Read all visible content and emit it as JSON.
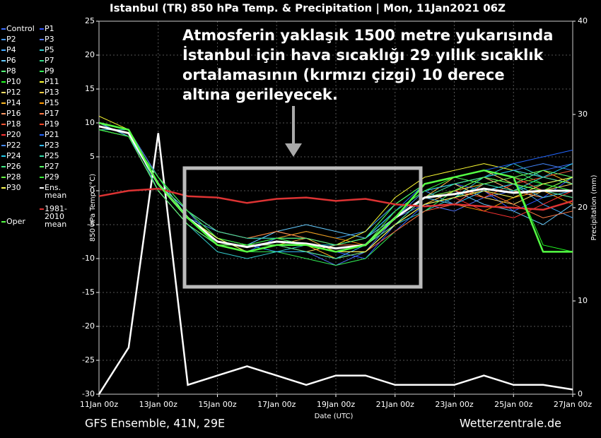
{
  "chart_data": {
    "type": "line",
    "title": "Istanbul  (TR)  850 hPa Temp. & Precipitation | Mon, 11Jan2021 06Z",
    "annotation": [
      "Atmosferin yaklaşık 1500 metre yukarısında",
      "İstanbul için hava sıcaklığı 29 yıllık sıcaklık",
      "ortalamasının (kırmızı çizgi) 10 derece",
      "altına gerileyecek."
    ],
    "footer_left": "GFS Ensemble, 41N, 29E",
    "footer_right": "Wetterzentrale.de",
    "ylabel": "850 hPa Temp. (°C)",
    "y2label": "Precipitation (mm)",
    "xlabel": "Date (UTC)",
    "grid": true,
    "x": [
      0,
      1,
      2,
      3,
      4,
      5,
      6,
      7,
      8,
      9,
      10,
      11,
      12,
      13,
      14,
      15,
      16
    ],
    "xlim": [
      0,
      16
    ],
    "xticks": [
      {
        "value": 0,
        "label": "11Jan 00z"
      },
      {
        "value": 2,
        "label": "13Jan 00z"
      },
      {
        "value": 4,
        "label": "15Jan 00z"
      },
      {
        "value": 6,
        "label": "17Jan 00z"
      },
      {
        "value": 8,
        "label": "19Jan 00z"
      },
      {
        "value": 10,
        "label": "21Jan 00z"
      },
      {
        "value": 12,
        "label": "23Jan 00z"
      },
      {
        "value": 14,
        "label": "25Jan 00z"
      },
      {
        "value": 16,
        "label": "27Jan 00z"
      }
    ],
    "ylim": [
      -30,
      25
    ],
    "yticks": [
      25,
      20,
      15,
      10,
      5,
      0,
      -5,
      -10,
      -15,
      -20,
      -25,
      -30
    ],
    "y2lim": [
      0,
      40
    ],
    "y2ticks": [
      0,
      10,
      20,
      30,
      40
    ],
    "series": [
      {
        "name": "Control",
        "color": "#3b6cff",
        "values": [
          10,
          9,
          2,
          -3,
          -7,
          -8,
          -8,
          -9,
          -10,
          -9,
          -6,
          -2,
          0,
          2,
          1,
          3,
          4
        ]
      },
      {
        "name": "P1",
        "color": "#3355ff",
        "values": [
          9,
          8,
          0,
          -5,
          -8,
          -9,
          -7,
          -8,
          -9,
          -10,
          -5,
          -1,
          1,
          0,
          -3,
          -1,
          2
        ]
      },
      {
        "name": "P2",
        "color": "#4499ff",
        "values": [
          10,
          9,
          1,
          -4,
          -7,
          -8,
          -6,
          -7,
          -8,
          -7,
          -3,
          0,
          -2,
          1,
          2,
          0,
          -1
        ]
      },
      {
        "name": "P3",
        "color": "#5577ff",
        "values": [
          9,
          8,
          1,
          -3,
          -8,
          -9,
          -8,
          -9,
          -11,
          -9,
          -4,
          -2,
          -3,
          -1,
          0,
          2,
          1
        ]
      },
      {
        "name": "P4",
        "color": "#44aaff",
        "values": [
          10,
          8,
          2,
          -4,
          -6,
          -7,
          -7,
          -6,
          -7,
          -6,
          -2,
          1,
          2,
          3,
          1,
          -2,
          -4
        ]
      },
      {
        "name": "P5",
        "color": "#33cccc",
        "values": [
          9,
          9,
          0,
          -5,
          -9,
          -10,
          -9,
          -8,
          -9,
          -8,
          -5,
          -3,
          -1,
          2,
          4,
          2,
          3
        ]
      },
      {
        "name": "P6",
        "color": "#66ccff",
        "values": [
          10,
          8,
          1,
          -3,
          -7,
          -8,
          -6,
          -5,
          -6,
          -7,
          -4,
          -1,
          0,
          -2,
          -3,
          -5,
          -2
        ]
      },
      {
        "name": "P7",
        "color": "#33dd88",
        "values": [
          9,
          8,
          1,
          -4,
          -8,
          -8,
          -7,
          -8,
          -9,
          -8,
          -3,
          0,
          1,
          2,
          0,
          1,
          2
        ]
      },
      {
        "name": "P8",
        "color": "#55ff77",
        "values": [
          10,
          9,
          2,
          -4,
          -7,
          -9,
          -8,
          -8,
          -9,
          -9,
          -5,
          -2,
          -1,
          0,
          1,
          3,
          2
        ]
      },
      {
        "name": "P9",
        "color": "#33ee55",
        "values": [
          9,
          8,
          0,
          -5,
          -8,
          -9,
          -9,
          -10,
          -11,
          -10,
          -6,
          -3,
          0,
          2,
          3,
          1,
          0
        ]
      },
      {
        "name": "P10",
        "color": "#22ff22",
        "values": [
          10,
          9,
          1,
          -4,
          -8,
          -8,
          -7,
          -7,
          -8,
          -7,
          -2,
          1,
          2,
          3,
          2,
          -8,
          -9
        ]
      },
      {
        "name": "P11",
        "color": "#ffff33",
        "values": [
          11,
          9,
          2,
          -3,
          -6,
          -7,
          -6,
          -7,
          -8,
          -6,
          -1,
          2,
          3,
          4,
          3,
          2,
          1
        ]
      },
      {
        "name": "P12",
        "color": "#ffdd66",
        "values": [
          10,
          8,
          1,
          -4,
          -7,
          -8,
          -8,
          -9,
          -8,
          -7,
          -3,
          0,
          1,
          -1,
          -2,
          0,
          1
        ]
      },
      {
        "name": "P13",
        "color": "#ffcc44",
        "values": [
          9,
          8,
          0,
          -5,
          -8,
          -9,
          -8,
          -7,
          -9,
          -8,
          -4,
          -1,
          2,
          3,
          1,
          0,
          2
        ]
      },
      {
        "name": "P14",
        "color": "#ffbb22",
        "values": [
          10,
          9,
          2,
          -3,
          -7,
          -8,
          -7,
          -8,
          -10,
          -9,
          -5,
          -2,
          0,
          1,
          2,
          3,
          1
        ]
      },
      {
        "name": "P15",
        "color": "#ff9900",
        "values": [
          9,
          8,
          1,
          -4,
          -7,
          -8,
          -7,
          -6,
          -7,
          -8,
          -4,
          -1,
          -2,
          -3,
          -1,
          0,
          -2
        ]
      },
      {
        "name": "P16",
        "color": "#ff9966",
        "values": [
          10,
          8,
          1,
          -4,
          -8,
          -9,
          -8,
          -8,
          -9,
          -8,
          -3,
          0,
          1,
          2,
          0,
          -1,
          0
        ]
      },
      {
        "name": "P17",
        "color": "#ff7744",
        "values": [
          10,
          9,
          2,
          -3,
          -6,
          -7,
          -6,
          -7,
          -8,
          -8,
          -5,
          -2,
          -1,
          0,
          -2,
          -4,
          -3
        ]
      },
      {
        "name": "P18",
        "color": "#ff5533",
        "values": [
          9,
          8,
          0,
          -5,
          -8,
          -8,
          -7,
          -8,
          -9,
          -9,
          -6,
          -3,
          -2,
          1,
          2,
          0,
          -1
        ]
      },
      {
        "name": "P19",
        "color": "#ff4422",
        "values": [
          10,
          9,
          1,
          -4,
          -7,
          -8,
          -7,
          -8,
          -9,
          -8,
          -4,
          -1,
          0,
          -1,
          1,
          2,
          3
        ]
      },
      {
        "name": "P20",
        "color": "#ff3333",
        "values": [
          9,
          8,
          1,
          -4,
          -8,
          -9,
          -8,
          -9,
          -10,
          -9,
          -5,
          -2,
          -1,
          -3,
          -4,
          -2,
          0
        ]
      },
      {
        "name": "P21",
        "color": "#2266ff",
        "values": [
          10,
          9,
          2,
          -3,
          -7,
          -8,
          -7,
          -7,
          -8,
          -7,
          -3,
          1,
          2,
          3,
          4,
          5,
          6
        ]
      },
      {
        "name": "P22",
        "color": "#4488ff",
        "values": [
          9,
          8,
          0,
          -5,
          -8,
          -9,
          -8,
          -8,
          -9,
          -8,
          -4,
          0,
          1,
          2,
          3,
          4,
          3
        ]
      },
      {
        "name": "P23",
        "color": "#33bbff",
        "values": [
          10,
          8,
          1,
          -4,
          -7,
          -8,
          -9,
          -9,
          -10,
          -8,
          -4,
          -1,
          -2,
          0,
          1,
          -1,
          0
        ]
      },
      {
        "name": "P24",
        "color": "#22ccee",
        "values": [
          10,
          9,
          1,
          -4,
          -7,
          -8,
          -7,
          -8,
          -8,
          -7,
          -3,
          0,
          1,
          2,
          3,
          2,
          4
        ]
      },
      {
        "name": "P25",
        "color": "#33ddaa",
        "values": [
          9,
          8,
          2,
          -3,
          -6,
          -7,
          -7,
          -8,
          -9,
          -8,
          -5,
          -2,
          -1,
          1,
          0,
          2,
          1
        ]
      },
      {
        "name": "P26",
        "color": "#44ee88",
        "values": [
          10,
          9,
          1,
          -4,
          -8,
          -9,
          -8,
          -9,
          -10,
          -9,
          -5,
          -1,
          1,
          2,
          1,
          0,
          -1
        ]
      },
      {
        "name": "P27",
        "color": "#55ff66",
        "values": [
          9,
          8,
          0,
          -5,
          -8,
          -8,
          -7,
          -7,
          -8,
          -7,
          -2,
          1,
          2,
          1,
          2,
          3,
          2
        ]
      },
      {
        "name": "P28",
        "color": "#66ff44",
        "values": [
          10,
          9,
          1,
          -4,
          -7,
          -8,
          -8,
          -8,
          -9,
          -8,
          -4,
          -1,
          0,
          2,
          1,
          0,
          2
        ]
      },
      {
        "name": "P29",
        "color": "#33ee33",
        "values": [
          9,
          8,
          2,
          -3,
          -7,
          -8,
          -7,
          -8,
          -9,
          -8,
          -3,
          0,
          2,
          3,
          2,
          1,
          0
        ]
      },
      {
        "name": "P30",
        "color": "#ffff55",
        "values": [
          10,
          9,
          1,
          -4,
          -7,
          -9,
          -8,
          -8,
          -9,
          -9,
          -5,
          -2,
          -1,
          0,
          -1,
          1,
          2
        ]
      },
      {
        "name": "Ens. mean",
        "color": "#ffffff",
        "values": [
          9.5,
          8.5,
          1,
          -4,
          -7.5,
          -8.3,
          -7.5,
          -7.8,
          -8.5,
          -8,
          -4,
          -1,
          -0.5,
          0.3,
          -0.3,
          0,
          0
        ]
      },
      {
        "name": "1981-2010 mean",
        "color": "#dd3333",
        "values": [
          -0.8,
          0,
          0.3,
          -0.8,
          -1,
          -1.8,
          -1.2,
          -1,
          -1.5,
          -1.2,
          -2,
          -2.3,
          -2,
          -2.3,
          -2.5,
          -2.8,
          -1.5
        ]
      },
      {
        "name": "Oper",
        "color": "#55ff44",
        "values": [
          10,
          9,
          1,
          -4,
          -8,
          -9,
          -8,
          -8,
          -9,
          -8,
          -4,
          1,
          2,
          3,
          2,
          -9,
          -9
        ]
      }
    ],
    "precip_series": [
      {
        "axis": "y2",
        "color": "#ffffff",
        "values": [
          0,
          5,
          28,
          1,
          2,
          3,
          2,
          1,
          2,
          2,
          1,
          1,
          1,
          2,
          1,
          1,
          0.5
        ]
      }
    ]
  }
}
